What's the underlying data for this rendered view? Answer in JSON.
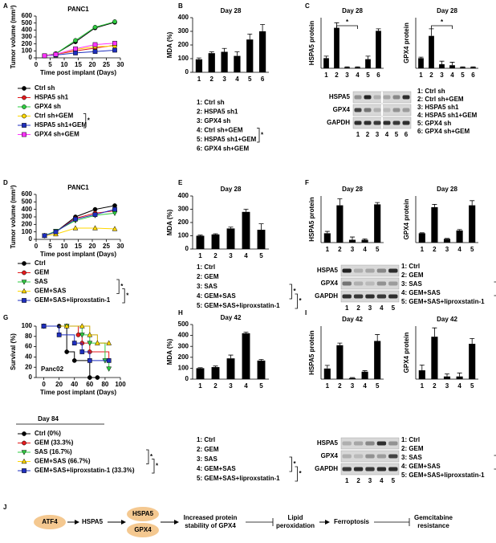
{
  "chart_data": [
    {
      "type": "line",
      "title": "PANC1",
      "xlabel": "Time post implant (Days)",
      "ylabel": "Tumor volume (mm³)",
      "x": [
        3,
        7,
        14,
        21,
        28
      ],
      "xlim": [
        0,
        30
      ],
      "xticks": [
        0,
        5,
        10,
        15,
        20,
        25,
        30
      ],
      "ylim": [
        0,
        600
      ],
      "yticks": [
        0,
        100,
        200,
        300,
        400,
        500,
        600
      ],
      "series": [
        {
          "name": "Ctrl sh",
          "color": "#000000",
          "marker": "circle",
          "values": [
            30,
            60,
            230,
            430,
            510
          ]
        },
        {
          "name": "HSPA5 sh1",
          "color": "#e41a1c",
          "marker": "circle",
          "values": [
            30,
            50,
            100,
            140,
            180
          ]
        },
        {
          "name": "GPX4 sh",
          "color": "#2ecc40",
          "marker": "circle",
          "values": [
            30,
            60,
            250,
            440,
            520
          ]
        },
        {
          "name": "Ctrl sh+GEM",
          "color": "#ffd700",
          "marker": "circle",
          "values": [
            30,
            50,
            120,
            160,
            170
          ]
        },
        {
          "name": "HSPA5 sh1+GEM",
          "color": "#1f2fbf",
          "marker": "square",
          "values": [
            30,
            40,
            70,
            90,
            110
          ]
        },
        {
          "name": "GPX4 sh+GEM",
          "color": "#ff33ff",
          "marker": "square",
          "values": [
            30,
            50,
            130,
            190,
            210
          ]
        }
      ],
      "significance": [
        "*"
      ]
    },
    {
      "type": "bar",
      "title": "Day 28",
      "ylabel": "MDA (%)",
      "categories": [
        "1",
        "2",
        "3",
        "4",
        "5",
        "6"
      ],
      "values": [
        95,
        140,
        150,
        120,
        240,
        300
      ],
      "errors": [
        10,
        10,
        25,
        30,
        40,
        50
      ],
      "color": "#000000",
      "ylim": [
        0,
        400
      ],
      "yticks": [
        0,
        100,
        200,
        300,
        400
      ]
    },
    {
      "type": "bar",
      "title": "Day 28",
      "ylabel": "HSPA5 protein",
      "categories": [
        "1",
        "2",
        "3",
        "4",
        "5",
        "6"
      ],
      "values": [
        1,
        4,
        0.1,
        0.1,
        0.9,
        3.7
      ],
      "errors": [
        0.2,
        0.5,
        0.05,
        0.05,
        0.3,
        0.2
      ],
      "color": "#000000",
      "ylim": [
        0,
        5
      ],
      "annotation": "*"
    },
    {
      "type": "bar",
      "title": "Day 28",
      "ylabel": "GPX4 protein",
      "categories": [
        "1",
        "2",
        "3",
        "4",
        "5",
        "6"
      ],
      "values": [
        1,
        3.2,
        0.4,
        0.3,
        0.1,
        0.1
      ],
      "errors": [
        0.1,
        0.7,
        0.3,
        0.3,
        0.05,
        0.05
      ],
      "color": "#000000",
      "ylim": [
        0,
        5
      ],
      "annotation": "*"
    },
    {
      "type": "line",
      "title": "PANC1",
      "xlabel": "Time post implant (Days)",
      "ylabel": "Tumor volume (mm³)",
      "x": [
        3,
        7,
        14,
        21,
        28
      ],
      "xlim": [
        0,
        30
      ],
      "xticks": [
        0,
        5,
        10,
        15,
        20,
        25,
        30
      ],
      "ylim": [
        0,
        600
      ],
      "yticks": [
        0,
        100,
        200,
        300,
        400,
        500,
        600
      ],
      "series": [
        {
          "name": "Ctrl",
          "color": "#000000",
          "marker": "circle",
          "values": [
            50,
            100,
            300,
            400,
            450
          ]
        },
        {
          "name": "GEM",
          "color": "#e41a1c",
          "marker": "circle",
          "values": [
            50,
            100,
            280,
            350,
            380
          ]
        },
        {
          "name": "SAS",
          "color": "#2ecc40",
          "marker": "triangle-down",
          "values": [
            50,
            110,
            250,
            320,
            350
          ]
        },
        {
          "name": "GEM+SAS",
          "color": "#ffd700",
          "marker": "triangle-up",
          "values": [
            50,
            70,
            150,
            150,
            140
          ]
        },
        {
          "name": "GEM+SAS+liproxstatin-1",
          "color": "#1f2fbf",
          "marker": "square",
          "values": [
            50,
            100,
            270,
            330,
            400
          ]
        }
      ],
      "significance": [
        "*",
        "*"
      ]
    },
    {
      "type": "bar",
      "title": "Day 28",
      "ylabel": "MDA (%)",
      "categories": [
        "1",
        "2",
        "3",
        "4",
        "5"
      ],
      "values": [
        100,
        110,
        155,
        280,
        145
      ],
      "errors": [
        5,
        5,
        10,
        20,
        45
      ],
      "color": "#000000",
      "ylim": [
        0,
        400
      ],
      "yticks": [
        0,
        100,
        200,
        300,
        400
      ]
    },
    {
      "type": "bar",
      "title": "Day 28",
      "ylabel": "HSPA5 protein",
      "categories": [
        "1",
        "2",
        "3",
        "4",
        "5"
      ],
      "values": [
        1,
        4,
        0.3,
        0.3,
        4.1
      ],
      "errors": [
        0.2,
        0.7,
        0.3,
        0.1,
        0.2
      ],
      "color": "#000000",
      "ylim": [
        0,
        5
      ]
    },
    {
      "type": "bar",
      "title": "Day 28",
      "ylabel": "GPX4 protein",
      "categories": [
        "1",
        "2",
        "3",
        "4",
        "5"
      ],
      "values": [
        1,
        3.8,
        0.4,
        1.3,
        4
      ],
      "errors": [
        0.05,
        0.3,
        0.05,
        0.1,
        0.5
      ],
      "color": "#000000",
      "ylim": [
        0,
        5
      ]
    },
    {
      "type": "survival",
      "title": "Panc02",
      "xlabel": "Time post implant (Days)",
      "ylabel": "Survival (%)",
      "xlim": [
        -10,
        100
      ],
      "xticks": [
        0,
        20,
        40,
        60,
        80,
        100
      ],
      "ylim": [
        0,
        100
      ],
      "yticks": [
        0,
        20,
        40,
        60,
        80,
        100
      ],
      "legend_title": "Day 84",
      "series": [
        {
          "name": "Ctrl  (0%)",
          "color": "#000000",
          "marker": "circle",
          "x": [
            0,
            20,
            30,
            40,
            60,
            70
          ],
          "values": [
            100,
            100,
            50,
            33,
            0,
            0
          ]
        },
        {
          "name": "GEM (33.3%)",
          "color": "#e41a1c",
          "marker": "circle",
          "x": [
            0,
            30,
            45,
            50,
            60,
            85
          ],
          "values": [
            100,
            100,
            83,
            67,
            50,
            33
          ]
        },
        {
          "name": "SAS (16.7%)",
          "color": "#2ecc40",
          "marker": "triangle-down",
          "x": [
            0,
            30,
            50,
            60,
            80,
            85
          ],
          "values": [
            100,
            100,
            83,
            67,
            33,
            17
          ]
        },
        {
          "name": "GEM+SAS (66.7%)",
          "color": "#ffd700",
          "marker": "triangle-up",
          "x": [
            0,
            30,
            50,
            60,
            70,
            85
          ],
          "values": [
            100,
            100,
            100,
            83,
            67,
            67
          ]
        },
        {
          "name": "GEM+SAS+liproxstatin-1 (33.3%)",
          "color": "#1f2fbf",
          "marker": "square",
          "x": [
            0,
            20,
            40,
            50,
            60,
            85
          ],
          "values": [
            100,
            83,
            67,
            50,
            33,
            33
          ]
        }
      ],
      "significance": [
        "*",
        "*"
      ]
    },
    {
      "type": "bar",
      "title": "Day 42",
      "ylabel": "MDA (%)",
      "categories": [
        "1",
        "2",
        "3",
        "4",
        "5"
      ],
      "values": [
        100,
        110,
        190,
        420,
        170
      ],
      "errors": [
        5,
        10,
        30,
        10,
        10
      ],
      "color": "#000000",
      "ylim": [
        0,
        500
      ],
      "yticks": [
        0,
        100,
        200,
        300,
        400,
        500
      ]
    },
    {
      "type": "bar",
      "title": "Day 42",
      "ylabel": "HSPA5 protein",
      "categories": [
        "1",
        "2",
        "3",
        "4",
        "5"
      ],
      "values": [
        1,
        3.2,
        0.1,
        0.7,
        3.6
      ],
      "errors": [
        0.3,
        0.2,
        0.05,
        0.1,
        0.6
      ],
      "color": "#000000",
      "ylim": [
        0,
        5
      ]
    },
    {
      "type": "bar",
      "title": "Day 42",
      "ylabel": "GPX4 protein",
      "categories": [
        "1",
        "2",
        "3",
        "4",
        "5"
      ],
      "values": [
        1,
        4.8,
        0.3,
        0.3,
        4
      ],
      "errors": [
        0.6,
        1,
        0.3,
        0.4,
        0.6
      ],
      "color": "#000000",
      "ylim": [
        0,
        6
      ]
    }
  ],
  "panel_letters": [
    "A",
    "B",
    "C",
    "D",
    "E",
    "F",
    "G",
    "H",
    "I",
    "J"
  ],
  "legends": [
    {
      "lines": [
        "1: Ctrl sh",
        "2: HSPA5 sh1",
        "3: GPX4 sh",
        "4: Ctrl sh+GEM",
        "5: HSPA5 sh1+GEM",
        "6: GPX4 sh+GEM"
      ],
      "significance": [
        "*"
      ]
    },
    {
      "lines": [
        "1: Ctrl sh",
        "2: Ctrl sh+GEM",
        "3: HSPA5 sh1",
        "4: HSPA5 sh1+GEM",
        "5: GPX4 sh",
        "6: GPX4 sh+GEM"
      ]
    },
    {
      "lines": [
        "1: Ctrl",
        "2: GEM",
        "3: SAS",
        "4: GEM+SAS",
        "5: GEM+SAS+liproxstatin-1"
      ],
      "significance": [
        "*",
        "*"
      ]
    },
    {
      "lines": [
        "1: Ctrl",
        "2: GEM",
        "3: SAS",
        "4: GEM+SAS",
        "5: GEM+SAS+liproxstatin-1"
      ],
      "significance": [
        "*",
        "*"
      ]
    },
    {
      "lines": [
        "1: Ctrl",
        "2: GEM",
        "3: SAS",
        "4: GEM+SAS",
        "5: GEM+SAS+liproxstatin-1"
      ],
      "significance": [
        "*",
        "*"
      ]
    },
    {
      "lines": [
        "1: Ctrl",
        "2: GEM",
        "3: SAS",
        "4: GEM+SAS",
        "5: GEM+SAS+liproxstatin-1"
      ],
      "significance": [
        "*",
        "*"
      ]
    }
  ],
  "blots": [
    {
      "rows": [
        "HSPA5",
        "GPX4",
        "GAPDH"
      ],
      "lanes": [
        "1",
        "2",
        "3",
        "4",
        "5",
        "6"
      ]
    },
    {
      "rows": [
        "HSPA5",
        "GPX4",
        "GAPDH"
      ],
      "lanes": [
        "1",
        "2",
        "3",
        "4",
        "5"
      ]
    },
    {
      "rows": [
        "HSPA5",
        "GPX4",
        "GAPDH"
      ],
      "lanes": [
        "1",
        "2",
        "3",
        "4",
        "5"
      ]
    }
  ],
  "diagram": {
    "nodes": [
      [
        "ATF4"
      ],
      [
        "HSPA5"
      ],
      [
        "HSPA5"
      ],
      [
        "GPX4"
      ],
      [
        "Increased protein",
        "stability of GPX4"
      ],
      [
        "Lipid",
        "peroxidation"
      ],
      [
        "Ferroptosis"
      ],
      [
        "Gemcitabine",
        "resistance"
      ]
    ]
  }
}
